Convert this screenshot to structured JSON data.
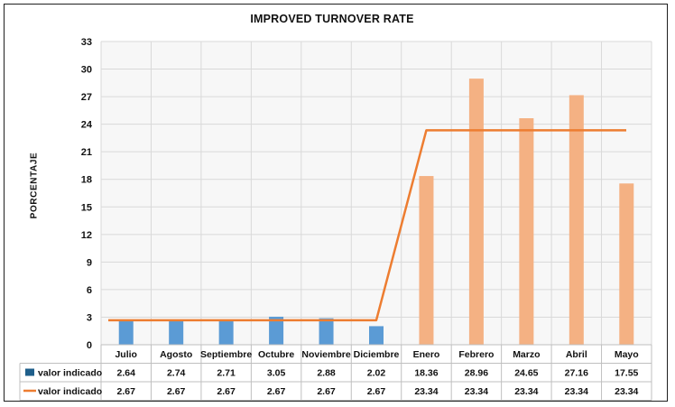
{
  "chart_data": {
    "type": "bar",
    "title": "IMPROVED TURNOVER RATE",
    "ylabel": "PORCENTAJE",
    "xlabel": "",
    "ylim": [
      0,
      33
    ],
    "yticks": [
      0,
      3,
      6,
      9,
      12,
      15,
      18,
      21,
      24,
      27,
      30,
      33
    ],
    "grid": true,
    "legend_placement": "data-table-left",
    "categories": [
      "Julio",
      "Agosto",
      "Septiembre",
      "Octubre",
      "Noviembre",
      "Diciembre",
      "Enero",
      "Febrero",
      "Marzo",
      "Abril",
      "Mayo"
    ],
    "series": [
      {
        "name": "valor indicado",
        "kind": "bar",
        "values": [
          2.64,
          2.74,
          2.71,
          3.05,
          2.88,
          2.02,
          18.36,
          28.96,
          24.65,
          27.16,
          17.55
        ],
        "value_labels": [
          "2.64",
          "2.74",
          "2.71",
          "3.05",
          "2.88",
          "2.02",
          "18.36",
          "28.96",
          "24.65",
          "27.16",
          "17.55"
        ],
        "colors": [
          "#5b9bd5",
          "#5b9bd5",
          "#5b9bd5",
          "#5b9bd5",
          "#5b9bd5",
          "#5b9bd5",
          "#f4b183",
          "#f4b183",
          "#f4b183",
          "#f4b183",
          "#f4b183"
        ],
        "legend_color": "#1f5f8b"
      },
      {
        "name": "valor indicado",
        "kind": "line",
        "values": [
          2.67,
          2.67,
          2.67,
          2.67,
          2.67,
          2.67,
          23.34,
          23.34,
          23.34,
          23.34,
          23.34
        ],
        "value_labels": [
          "2.67",
          "2.67",
          "2.67",
          "2.67",
          "2.67",
          "2.67",
          "23.34",
          "23.34",
          "23.34",
          "23.34",
          "23.34"
        ],
        "color": "#ed7d31"
      }
    ]
  }
}
